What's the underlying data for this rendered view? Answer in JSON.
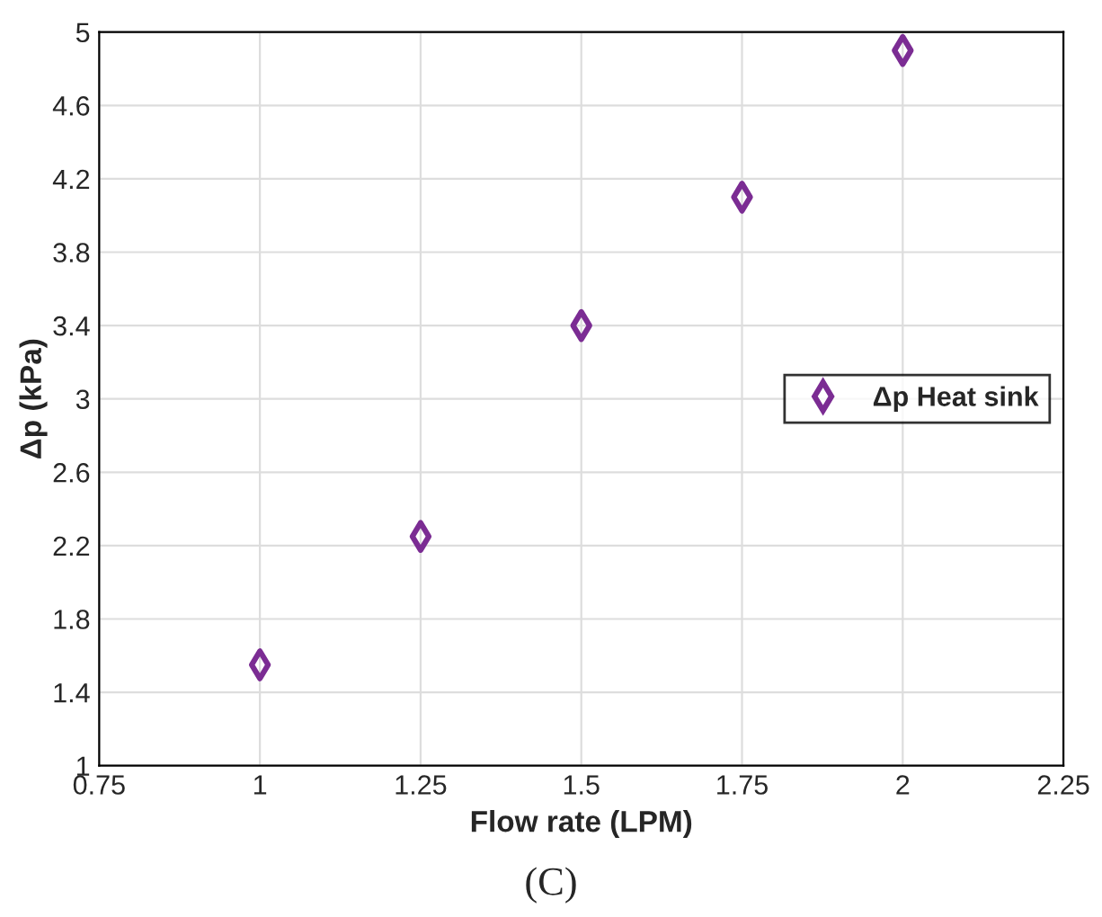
{
  "chart_data": {
    "type": "scatter",
    "xlabel": "Flow rate (LPM)",
    "ylabel": "Δp (kPa)",
    "x": [
      1,
      1.25,
      1.5,
      1.75,
      2
    ],
    "series": [
      {
        "name": "Δp Heat sink",
        "color": "#7b2c93",
        "values": [
          1.55,
          2.25,
          3.4,
          4.1,
          4.9
        ]
      }
    ],
    "xlim": [
      0.75,
      2.25
    ],
    "xticks": [
      0.75,
      1,
      1.25,
      1.5,
      1.75,
      2,
      2.25
    ],
    "ylim": [
      1,
      5
    ],
    "yticks": [
      1,
      1.4,
      1.8,
      2.2,
      2.6,
      3,
      3.4,
      3.8,
      4.2,
      4.6,
      5
    ],
    "grid": true,
    "legend": "center right",
    "marker": "diamond",
    "annotations": [
      "(C)"
    ]
  }
}
